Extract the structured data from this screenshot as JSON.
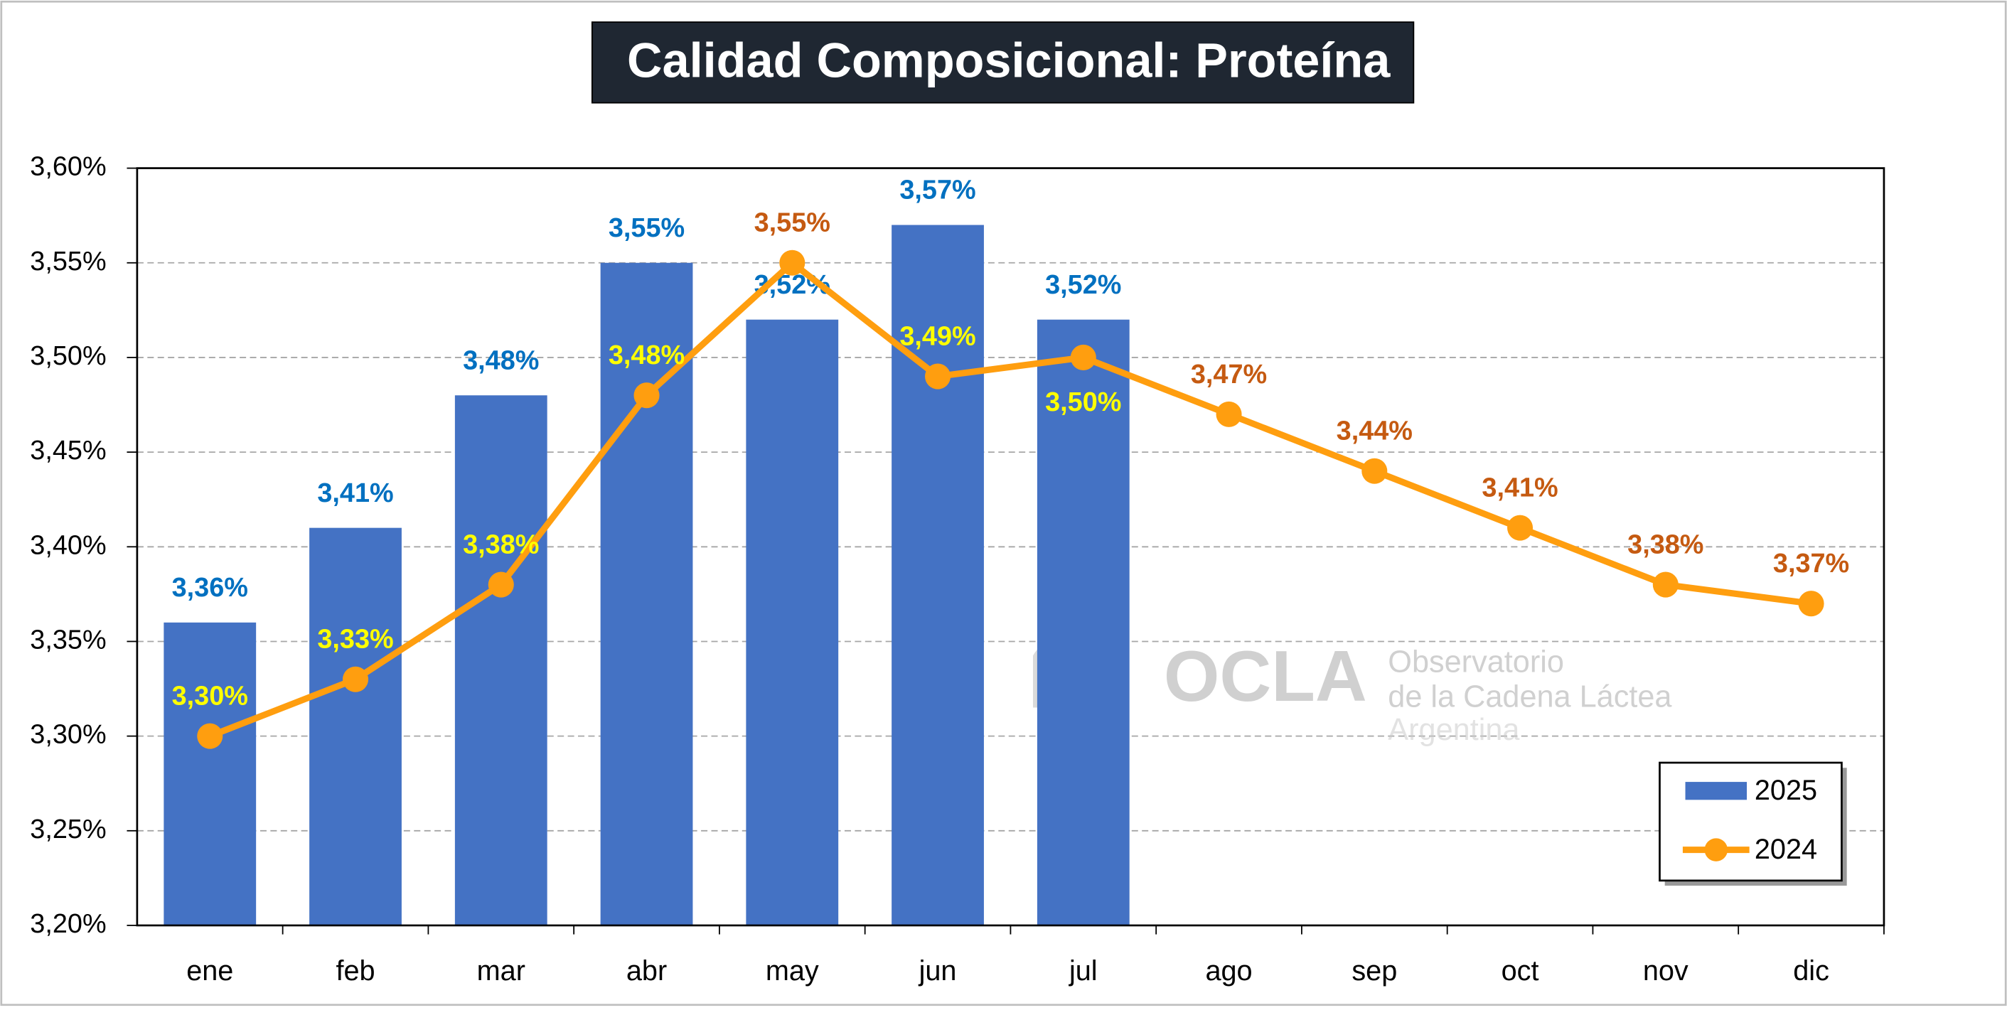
{
  "chart_data": {
    "type": "bar",
    "title": "Calidad Composicional: Proteína",
    "categories": [
      "ene",
      "feb",
      "mar",
      "abr",
      "may",
      "jun",
      "jul",
      "ago",
      "sep",
      "oct",
      "nov",
      "dic"
    ],
    "series": [
      {
        "name": "2025",
        "type": "bar",
        "color": "#4472c4",
        "values": [
          3.36,
          3.41,
          3.48,
          3.55,
          3.52,
          3.57,
          3.52,
          null,
          null,
          null,
          null,
          null
        ],
        "value_labels": [
          "3,36%",
          "3,41%",
          "3,48%",
          "3,55%",
          "3,52%",
          "3,57%",
          "3,52%",
          null,
          null,
          null,
          null,
          null
        ]
      },
      {
        "name": "2024",
        "type": "line",
        "color": "#ff9e0f",
        "values": [
          3.3,
          3.33,
          3.38,
          3.48,
          3.55,
          3.49,
          3.5,
          3.47,
          3.44,
          3.41,
          3.38,
          3.37
        ],
        "value_labels": [
          "3,30%",
          "3,33%",
          "3,38%",
          "3,48%",
          "3,55%",
          "3,49%",
          "3,50%",
          "3,47%",
          "3,44%",
          "3,41%",
          "3,38%",
          "3,37%"
        ]
      }
    ],
    "ylim": [
      3.2,
      3.6
    ],
    "yticks": [
      {
        "value": 3.2,
        "label": "3,20%"
      },
      {
        "value": 3.25,
        "label": "3,25%"
      },
      {
        "value": 3.3,
        "label": "3,30%"
      },
      {
        "value": 3.35,
        "label": "3,35%"
      },
      {
        "value": 3.4,
        "label": "3,40%"
      },
      {
        "value": 3.45,
        "label": "3,45%"
      },
      {
        "value": 3.5,
        "label": "3,50%"
      },
      {
        "value": 3.55,
        "label": "3,55%"
      },
      {
        "value": 3.6,
        "label": "3,60%"
      }
    ],
    "grid": true,
    "legend": "lower right",
    "watermark": {
      "logo": "OCLA",
      "line1": "Observatorio",
      "line2": "de la Cadena Láctea",
      "line3": "Argentina"
    }
  }
}
